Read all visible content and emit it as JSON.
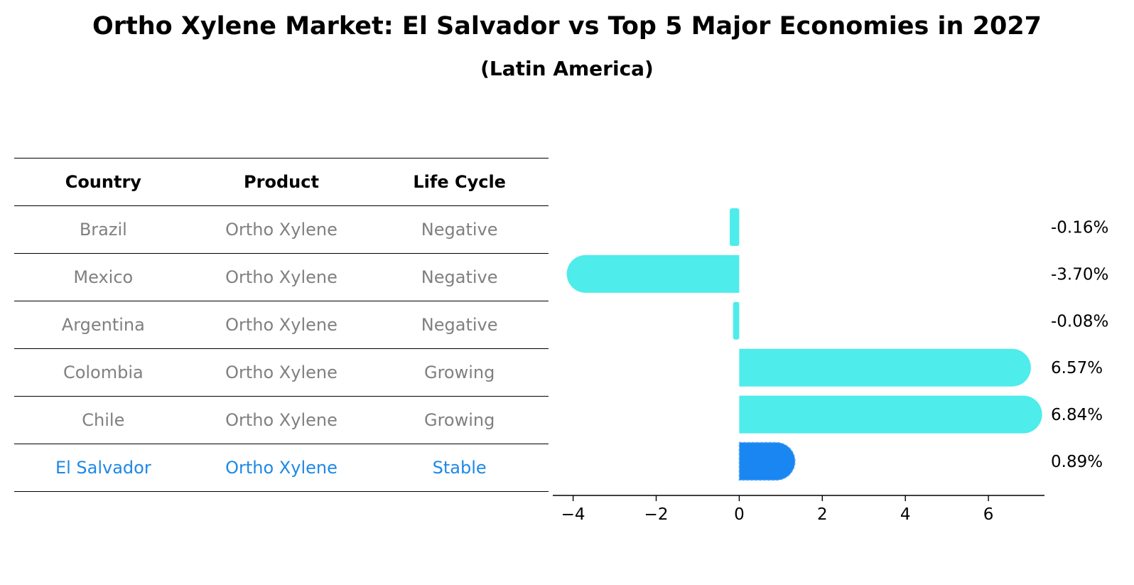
{
  "title": "Ortho Xylene Market: El Salvador vs Top 5 Major Economies in 2027",
  "subtitle": "(Latin America)",
  "table": {
    "headers": [
      "Country",
      "Product",
      "Life Cycle"
    ],
    "rows": [
      {
        "country": "Brazil",
        "product": "Ortho Xylene",
        "life_cycle": "Negative"
      },
      {
        "country": "Mexico",
        "product": "Ortho Xylene",
        "life_cycle": "Negative"
      },
      {
        "country": "Argentina",
        "product": "Ortho Xylene",
        "life_cycle": "Negative"
      },
      {
        "country": "Colombia",
        "product": "Ortho Xylene",
        "life_cycle": "Growing"
      },
      {
        "country": "Chile",
        "product": "Ortho Xylene",
        "life_cycle": "Growing"
      },
      {
        "country": "El Salvador",
        "product": "Ortho Xylene",
        "life_cycle": "Stable"
      }
    ]
  },
  "chart_data": {
    "type": "bar",
    "orientation": "horizontal",
    "categories": [
      "Brazil",
      "Mexico",
      "Argentina",
      "Colombia",
      "Chile",
      "El Salvador"
    ],
    "values": [
      -0.16,
      -3.7,
      -0.08,
      6.57,
      6.84,
      0.89
    ],
    "value_labels": [
      "-0.16%",
      "-3.70%",
      "-0.08%",
      "6.57%",
      "6.84%",
      "0.89%"
    ],
    "xticks": [
      "−4",
      "−2",
      "0",
      "2",
      "4",
      "6"
    ],
    "xtick_values": [
      -4,
      -2,
      0,
      2,
      4,
      6
    ],
    "xlim": [
      -4.25,
      7.35
    ],
    "colors": {
      "default": "#4eeceb",
      "highlight": "#1a86f2",
      "highlight_text": "#1e88e5",
      "muted_text": "#808080"
    },
    "highlight_category": "El Salvador",
    "grid": false
  }
}
